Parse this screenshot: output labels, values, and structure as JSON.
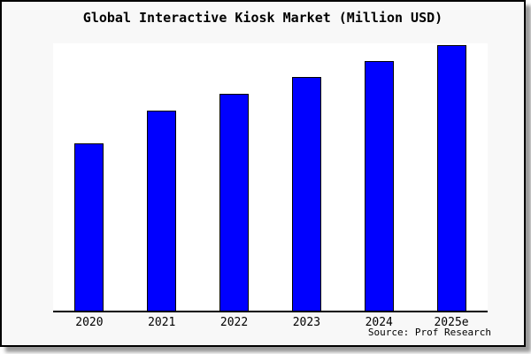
{
  "source_note": "Source: Prof Research",
  "colors": {
    "bar_fill": "#0000ff",
    "bar_border": "#000000",
    "card_background": "#f8f8f8",
    "plot_background": "#ffffff",
    "axis": "#000000",
    "frame_border": "#000000",
    "shadow": "#9a9a9a",
    "text": "#000000"
  },
  "chart_data": {
    "type": "bar",
    "title": "Global Interactive Kiosk Market (Million USD)",
    "categories": [
      "2020",
      "2021",
      "2022",
      "2023",
      "2024",
      "2025e"
    ],
    "values": [
      62.5,
      74.9,
      81.2,
      87.5,
      93.4,
      99.5
    ],
    "value_units": "relative % of plot height (y-axis unlabeled in chart)",
    "xlabel": "",
    "ylabel": "",
    "ylim": [
      0,
      100
    ],
    "grid": false,
    "legend": false,
    "bar_color": "#0000ff",
    "annotations": [
      "Source: Prof Research"
    ]
  }
}
